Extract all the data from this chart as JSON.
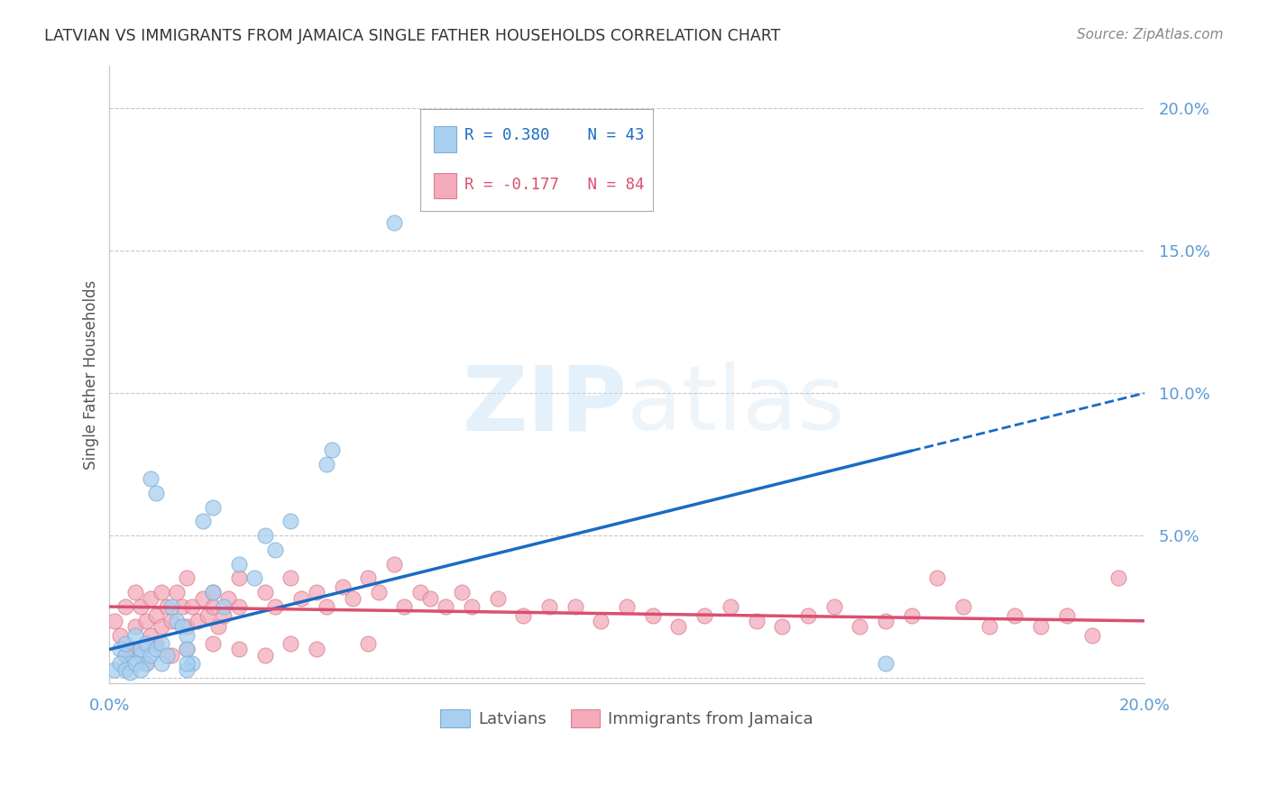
{
  "title": "LATVIAN VS IMMIGRANTS FROM JAMAICA SINGLE FATHER HOUSEHOLDS CORRELATION CHART",
  "source": "Source: ZipAtlas.com",
  "ylabel": "Single Father Households",
  "xlim": [
    0.0,
    0.2
  ],
  "ylim": [
    -0.002,
    0.215
  ],
  "yticks": [
    0.0,
    0.05,
    0.1,
    0.15,
    0.2
  ],
  "ytick_labels": [
    "",
    "5.0%",
    "10.0%",
    "15.0%",
    "20.0%"
  ],
  "xticks": [
    0.0,
    0.05,
    0.1,
    0.15,
    0.2
  ],
  "xtick_labels": [
    "0.0%",
    "",
    "",
    "",
    "20.0%"
  ],
  "series1_name": "Latvians",
  "series1_R": 0.38,
  "series1_N": 43,
  "series1_color": "#A8CFF0",
  "series1_edge_color": "#7BAFD4",
  "series1_line_color": "#1A6BC4",
  "series2_name": "Immigrants from Jamaica",
  "series2_R": -0.177,
  "series2_N": 84,
  "series2_color": "#F4AABB",
  "series2_edge_color": "#D98090",
  "series2_line_color": "#D95070",
  "watermark": "ZIPatlas",
  "background_color": "#ffffff",
  "grid_color": "#c8c8c8",
  "title_color": "#333333",
  "axis_color": "#5b9bd5",
  "legend_box_color": "#ffffff",
  "legend_box_edge": "#aaaaaa"
}
